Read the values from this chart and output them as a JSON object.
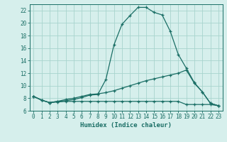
{
  "title": "",
  "xlabel": "Humidex (Indice chaleur)",
  "xlim": [
    -0.5,
    23.5
  ],
  "ylim": [
    6,
    23
  ],
  "xticks": [
    0,
    1,
    2,
    3,
    4,
    5,
    6,
    7,
    8,
    9,
    10,
    11,
    12,
    13,
    14,
    15,
    16,
    17,
    18,
    19,
    20,
    21,
    22,
    23
  ],
  "yticks": [
    6,
    8,
    10,
    12,
    14,
    16,
    18,
    20,
    22
  ],
  "background_color": "#d6efec",
  "grid_color": "#a8d4ce",
  "line_color": "#1a6e65",
  "line1_x": [
    0,
    1,
    2,
    3,
    4,
    5,
    6,
    7,
    8,
    9,
    10,
    11,
    12,
    13,
    14,
    15,
    16,
    17,
    18,
    19,
    20,
    21,
    22,
    23
  ],
  "line1_y": [
    8.3,
    7.7,
    7.3,
    7.5,
    7.6,
    7.8,
    8.1,
    8.5,
    8.6,
    11.0,
    16.5,
    19.8,
    21.2,
    22.5,
    22.5,
    21.7,
    21.3,
    18.7,
    15.0,
    12.8,
    10.5,
    9.0,
    7.2,
    6.8
  ],
  "line2_x": [
    0,
    1,
    2,
    3,
    4,
    5,
    6,
    7,
    8,
    9,
    10,
    11,
    12,
    13,
    14,
    15,
    16,
    17,
    18,
    19,
    20,
    21,
    22,
    23
  ],
  "line2_y": [
    8.3,
    7.7,
    7.3,
    7.5,
    7.8,
    8.0,
    8.3,
    8.6,
    8.7,
    8.9,
    9.2,
    9.6,
    10.0,
    10.4,
    10.8,
    11.1,
    11.4,
    11.7,
    12.0,
    12.5,
    10.4,
    9.0,
    7.2,
    6.8
  ],
  "line3_x": [
    0,
    1,
    2,
    3,
    4,
    5,
    6,
    7,
    8,
    9,
    10,
    11,
    12,
    13,
    14,
    15,
    16,
    17,
    18,
    19,
    20,
    21,
    22,
    23
  ],
  "line3_y": [
    8.3,
    7.7,
    7.3,
    7.4,
    7.5,
    7.5,
    7.5,
    7.5,
    7.5,
    7.5,
    7.5,
    7.5,
    7.5,
    7.5,
    7.5,
    7.5,
    7.5,
    7.5,
    7.5,
    7.0,
    7.0,
    7.0,
    7.0,
    6.8
  ],
  "tick_fontsize": 5.5,
  "xlabel_fontsize": 6.5
}
